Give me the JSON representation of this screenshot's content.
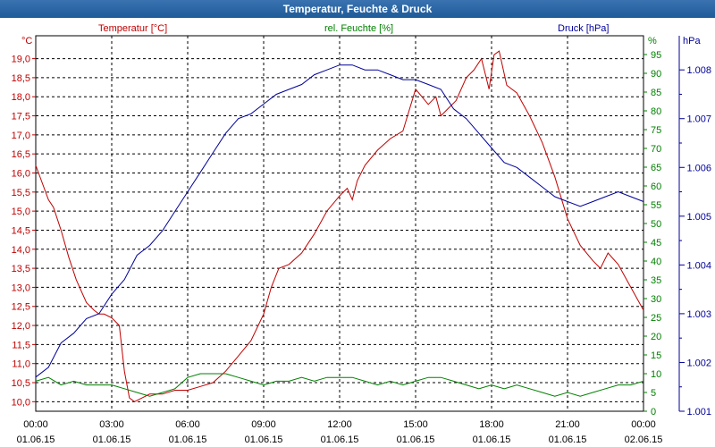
{
  "window": {
    "title": "Temperatur, Feuchte & Druck"
  },
  "colors": {
    "temp": "#c00000",
    "humid": "#008000",
    "press": "#00009a",
    "grid": "#000000"
  },
  "chart_data": {
    "type": "line",
    "title": "Temperatur, Feuchte & Druck",
    "series": [
      {
        "name": "Temperatur",
        "label": "Temperatur [°C]",
        "unit": "°C",
        "x": [
          0,
          0.5,
          0.7,
          1,
          1.3,
          1.6,
          2,
          2.3,
          2.5,
          2.7,
          3,
          3.3,
          3.5,
          3.7,
          3.9,
          4.2,
          4.5,
          5,
          5.5,
          6,
          6.5,
          7,
          7.5,
          8,
          8.5,
          9,
          9.3,
          9.6,
          10,
          10.5,
          11,
          11.5,
          12,
          12.3,
          12.5,
          12.7,
          13,
          13.5,
          14,
          14.5,
          15,
          15.5,
          15.8,
          16,
          16.3,
          16.6,
          17,
          17.3,
          17.6,
          17.9,
          18.1,
          18.3,
          18.6,
          19,
          19.5,
          20,
          20.5,
          21,
          21.5,
          22,
          22.3,
          22.6,
          23,
          23.5,
          24
        ],
        "values": [
          16.2,
          15.3,
          15.1,
          14.5,
          13.8,
          13.2,
          12.6,
          12.4,
          12.3,
          12.3,
          12.2,
          12.0,
          10.8,
          10.1,
          10.0,
          10.1,
          10.2,
          10.2,
          10.3,
          10.3,
          10.4,
          10.5,
          10.8,
          11.2,
          11.6,
          12.3,
          13.0,
          13.5,
          13.6,
          13.9,
          14.4,
          15.0,
          15.4,
          15.6,
          15.3,
          15.8,
          16.2,
          16.6,
          16.9,
          17.1,
          18.2,
          17.8,
          18.0,
          17.5,
          17.7,
          17.9,
          18.5,
          18.7,
          19.0,
          18.2,
          19.1,
          19.2,
          18.3,
          18.1,
          17.5,
          16.8,
          15.9,
          14.8,
          14.1,
          13.7,
          13.5,
          13.9,
          13.6,
          13.0,
          12.4
        ]
      },
      {
        "name": "rel. Feuchte",
        "label": "rel. Feuchte [%]",
        "unit": "%",
        "x": [
          0,
          0.5,
          1,
          1.5,
          2,
          2.5,
          3,
          3.5,
          4,
          4.5,
          5,
          5.5,
          6,
          6.5,
          7,
          7.5,
          8,
          8.5,
          9,
          9.5,
          10,
          10.5,
          11,
          11.5,
          12,
          12.5,
          13,
          13.5,
          14,
          14.5,
          15,
          15.5,
          16,
          16.5,
          17,
          17.5,
          18,
          18.5,
          19,
          19.5,
          20,
          20.5,
          21,
          21.5,
          22,
          22.5,
          23,
          23.5,
          24
        ],
        "values": [
          8,
          9,
          7,
          8,
          7,
          7,
          7,
          6,
          5,
          4,
          5,
          6,
          9,
          10,
          10,
          10,
          9,
          8,
          7,
          8,
          8,
          9,
          8,
          9,
          9,
          9,
          8,
          7,
          8,
          7,
          8,
          9,
          9,
          8,
          7,
          6,
          7,
          6,
          7,
          6,
          5,
          4,
          5,
          4,
          5,
          6,
          7,
          7,
          8
        ]
      },
      {
        "name": "Druck",
        "label": "Druck [hPa]",
        "unit": "hPa",
        "x": [
          0,
          0.5,
          1,
          1.5,
          2,
          2.5,
          3,
          3.5,
          4,
          4.5,
          5,
          5.5,
          6,
          6.5,
          7,
          7.5,
          8,
          8.5,
          9,
          9.5,
          10,
          10.5,
          11,
          11.5,
          12,
          12.5,
          13,
          13.5,
          14,
          14.5,
          15,
          15.5,
          16,
          16.5,
          17,
          17.5,
          18,
          18.5,
          19,
          19.5,
          20,
          20.5,
          21,
          21.5,
          22,
          22.5,
          23,
          23.5,
          24
        ],
        "values": [
          1.0017,
          1.0019,
          1.0024,
          1.0026,
          1.0029,
          1.003,
          1.0034,
          1.0037,
          1.0042,
          1.0044,
          1.0047,
          1.0051,
          1.0055,
          1.0059,
          1.0063,
          1.0067,
          1.007,
          1.0071,
          1.0073,
          1.0075,
          1.0076,
          1.0077,
          1.0079,
          1.008,
          1.0081,
          1.0081,
          1.008,
          1.008,
          1.0079,
          1.0078,
          1.0078,
          1.0077,
          1.0076,
          1.0072,
          1.007,
          1.0067,
          1.0064,
          1.0061,
          1.006,
          1.0058,
          1.0056,
          1.0054,
          1.0053,
          1.0052,
          1.0053,
          1.0054,
          1.0055,
          1.0054,
          1.0053
        ]
      }
    ],
    "axes": {
      "temp": {
        "label": "°C",
        "min": 9.75,
        "max": 19.6,
        "ticks": [
          10.0,
          10.5,
          11.0,
          11.5,
          12.0,
          12.5,
          13.0,
          13.5,
          14.0,
          14.5,
          15.0,
          15.5,
          16.0,
          16.5,
          17.0,
          17.5,
          18.0,
          18.5,
          19.0
        ],
        "tick_labels": [
          "10,0",
          "10,5",
          "11,0",
          "11,5",
          "12,0",
          "12,5",
          "13,0",
          "13,5",
          "14,0",
          "14,5",
          "15,0",
          "15,5",
          "16,0",
          "16,5",
          "17,0",
          "17,5",
          "18,0",
          "18,5",
          "19,0"
        ]
      },
      "humid": {
        "label": "%",
        "min": 0,
        "max": 100,
        "ticks": [
          0,
          5,
          10,
          15,
          20,
          25,
          30,
          35,
          40,
          45,
          50,
          55,
          60,
          65,
          70,
          75,
          80,
          85,
          90,
          95
        ],
        "tick_labels": [
          "0",
          "5",
          "10",
          "15",
          "20",
          "25",
          "30",
          "35",
          "40",
          "45",
          "50",
          "55",
          "60",
          "65",
          "70",
          "75",
          "80",
          "85",
          "90",
          "95"
        ]
      },
      "press": {
        "label": "hPa",
        "min": 1.001,
        "max": 1.0087,
        "ticks": [
          1.001,
          1.0015,
          1.002,
          1.0025,
          1.003,
          1.0035,
          1.004,
          1.0045,
          1.005,
          1.0055,
          1.006,
          1.0065,
          1.007,
          1.0075,
          1.008
        ],
        "tick_labels": [
          "1.001",
          "",
          "1.002",
          "",
          "1.003",
          "",
          "1.004",
          "",
          "1.005",
          "",
          "1.006",
          "",
          "1.007",
          "",
          "1.008"
        ]
      },
      "x": {
        "min": 0,
        "max": 24,
        "ticks": [
          0,
          3,
          6,
          9,
          12,
          15,
          18,
          21,
          24
        ],
        "time_labels": [
          "00:00",
          "03:00",
          "06:00",
          "09:00",
          "12:00",
          "15:00",
          "18:00",
          "21:00",
          "00:00"
        ],
        "date_labels": [
          "01.06.15",
          "01.06.15",
          "01.06.15",
          "01.06.15",
          "01.06.15",
          "01.06.15",
          "01.06.15",
          "01.06.15",
          "02.06.15"
        ]
      }
    },
    "grid": true
  }
}
